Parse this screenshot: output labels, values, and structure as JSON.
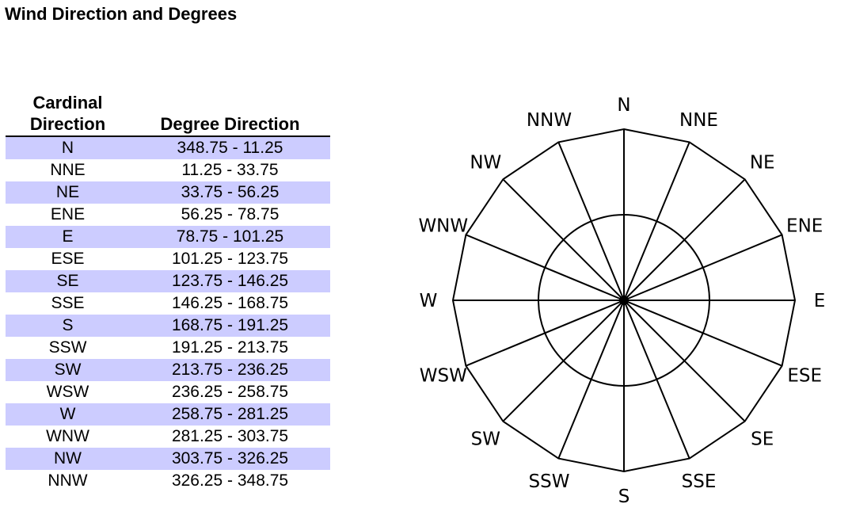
{
  "page": {
    "title": "Wind Direction and Degrees"
  },
  "table": {
    "headers": {
      "cardinal": "Cardinal Direction",
      "degree": "Degree Direction"
    },
    "rows": [
      {
        "cardinal": "N",
        "degrees": "348.75 - 11.25"
      },
      {
        "cardinal": "NNE",
        "degrees": "11.25 - 33.75"
      },
      {
        "cardinal": "NE",
        "degrees": "33.75 - 56.25"
      },
      {
        "cardinal": "ENE",
        "degrees": "56.25 - 78.75"
      },
      {
        "cardinal": "E",
        "degrees": "78.75 - 101.25"
      },
      {
        "cardinal": "ESE",
        "degrees": "101.25 - 123.75"
      },
      {
        "cardinal": "SE",
        "degrees": "123.75 - 146.25"
      },
      {
        "cardinal": "SSE",
        "degrees": "146.25 - 168.75"
      },
      {
        "cardinal": "S",
        "degrees": "168.75 - 191.25"
      },
      {
        "cardinal": "SSW",
        "degrees": "191.25 - 213.75"
      },
      {
        "cardinal": "SW",
        "degrees": "213.75 - 236.25"
      },
      {
        "cardinal": "WSW",
        "degrees": "236.25 - 258.75"
      },
      {
        "cardinal": "W",
        "degrees": "258.75 - 281.25"
      },
      {
        "cardinal": "WNW",
        "degrees": "281.25 - 303.75"
      },
      {
        "cardinal": "NW",
        "degrees": "303.75 - 326.25"
      },
      {
        "cardinal": "NNW",
        "degrees": "326.25 - 348.75"
      }
    ],
    "stripe_color": "#ccccff"
  },
  "compass": {
    "directions": [
      "N",
      "NNE",
      "NE",
      "ENE",
      "E",
      "ESE",
      "SE",
      "SSE",
      "S",
      "SSW",
      "SW",
      "WSW",
      "W",
      "WNW",
      "NW",
      "NNW"
    ]
  }
}
